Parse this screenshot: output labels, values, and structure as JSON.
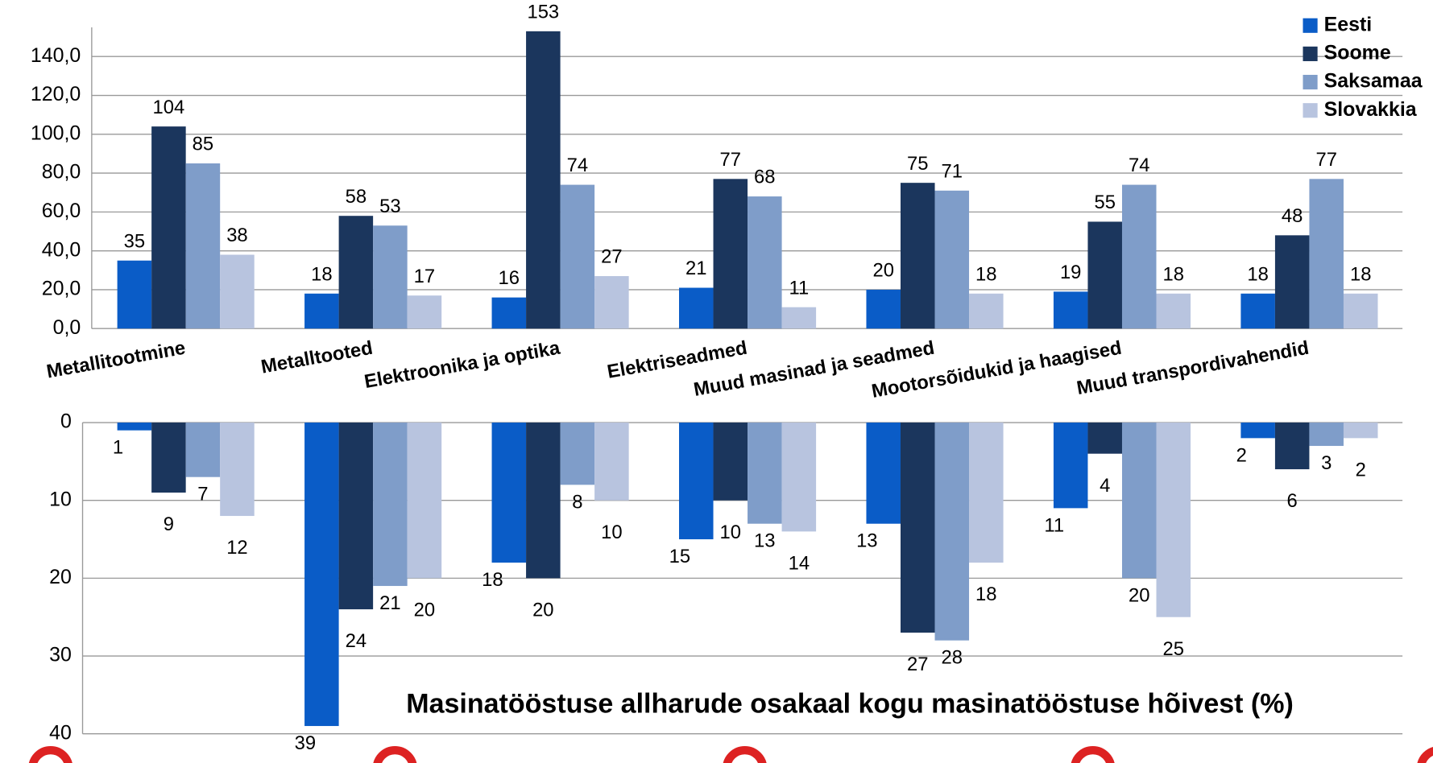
{
  "chart_data": [
    {
      "type": "bar",
      "categories": [
        "Metallitootmine",
        "Metalltooted",
        "Elektroonika ja optika",
        "Elektriseadmed",
        "Muud masinad ja seadmed",
        "Mootorsõidukid ja haagised",
        "Muud transpordivahendid"
      ],
      "series": [
        {
          "name": "Eesti",
          "color": "#0a5cc7",
          "values": [
            35,
            18,
            16,
            21,
            20,
            19,
            18
          ]
        },
        {
          "name": "Soome",
          "color": "#1b365d",
          "values": [
            104,
            58,
            153,
            77,
            75,
            55,
            48
          ]
        },
        {
          "name": "Saksamaa",
          "color": "#7f9dc9",
          "values": [
            85,
            53,
            74,
            68,
            71,
            74,
            77
          ]
        },
        {
          "name": "Slovakkia",
          "color": "#b8c4df",
          "values": [
            38,
            17,
            27,
            11,
            18,
            18,
            18
          ]
        }
      ],
      "ylim": [
        0,
        155
      ],
      "yticks": [
        {
          "value": 0,
          "label": "0,0"
        },
        {
          "value": 20,
          "label": "20,0"
        },
        {
          "value": 40,
          "label": "40,0"
        },
        {
          "value": 60,
          "label": "60,0"
        },
        {
          "value": 80,
          "label": "80,0"
        },
        {
          "value": 100,
          "label": "100,0"
        },
        {
          "value": 120,
          "label": "120,0"
        },
        {
          "value": 140,
          "label": "140,0"
        }
      ],
      "grid": true,
      "legend": "top-right"
    },
    {
      "type": "bar",
      "title": "Masinatööstuse allharude osakaal kogu masinatööstuse hõivest (%)",
      "series": [
        {
          "color": "#0a5cc7",
          "values": [
            1,
            39,
            18,
            15,
            13,
            11,
            2
          ]
        },
        {
          "color": "#1b365d",
          "values": [
            9,
            24,
            20,
            10,
            27,
            4,
            6
          ]
        },
        {
          "color": "#7f9dc9",
          "values": [
            7,
            21,
            8,
            13,
            28,
            20,
            3
          ]
        },
        {
          "color": "#b8c4df",
          "values": [
            12,
            20,
            10,
            14,
            18,
            25,
            2
          ]
        }
      ],
      "ylim": [
        0,
        40
      ],
      "yticks": [
        0,
        10,
        20,
        30,
        40
      ],
      "inverted": true,
      "grid": true
    }
  ]
}
